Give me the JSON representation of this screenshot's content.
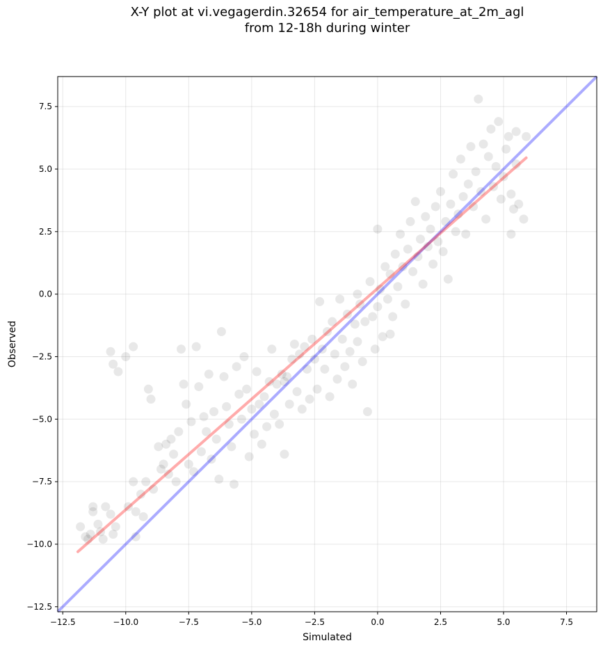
{
  "chart_data": {
    "type": "scatter",
    "title_line1": "X-Y plot at vi.vegagerdin.32654 for air_temperature_at_2m_agl",
    "title_line2": "from 12-18h during winter",
    "xlabel": "Simulated",
    "ylabel": "Observed",
    "xlim": [
      -12.7,
      8.7
    ],
    "ylim": [
      -12.7,
      8.7
    ],
    "xticks": [
      -12.5,
      -10.0,
      -7.5,
      -5.0,
      -2.5,
      0.0,
      2.5,
      5.0,
      7.5
    ],
    "yticks": [
      -12.5,
      -10.0,
      -7.5,
      -5.0,
      -2.5,
      0.0,
      2.5,
      5.0,
      7.5
    ],
    "xtick_labels": [
      "−12.5",
      "−10.0",
      "−7.5",
      "−5.0",
      "−2.5",
      "0.0",
      "2.5",
      "5.0",
      "7.5"
    ],
    "ytick_labels": [
      "−12.5",
      "−10.0",
      "−7.5",
      "−5.0",
      "−2.5",
      "0.0",
      "2.5",
      "5.0",
      "7.5"
    ],
    "grid": true,
    "point_color": "#000000",
    "point_alpha": 0.09,
    "identity_line": {
      "color": "#0000ff",
      "alpha": 0.33,
      "x": [
        -12.7,
        8.7
      ],
      "y": [
        -12.7,
        8.7
      ]
    },
    "regression_line": {
      "color": "#ff0000",
      "alpha": 0.33,
      "x": [
        -11.9,
        5.9
      ],
      "y": [
        -10.3,
        5.45
      ]
    },
    "points": [
      [
        -11.8,
        -9.3
      ],
      [
        -11.6,
        -9.7
      ],
      [
        -11.5,
        -9.8
      ],
      [
        -11.4,
        -9.6
      ],
      [
        -11.3,
        -8.5
      ],
      [
        -11.3,
        -8.7
      ],
      [
        -11.1,
        -9.2
      ],
      [
        -11.0,
        -9.5
      ],
      [
        -10.9,
        -9.8
      ],
      [
        -10.8,
        -8.5
      ],
      [
        -10.6,
        -8.8
      ],
      [
        -10.5,
        -9.6
      ],
      [
        -10.4,
        -9.3
      ],
      [
        -10.6,
        -2.3
      ],
      [
        -10.5,
        -2.8
      ],
      [
        -10.3,
        -3.1
      ],
      [
        -10.0,
        -2.5
      ],
      [
        -9.7,
        -2.1
      ],
      [
        -9.9,
        -8.5
      ],
      [
        -9.7,
        -7.5
      ],
      [
        -9.6,
        -8.7
      ],
      [
        -9.6,
        -9.7
      ],
      [
        -9.4,
        -8.0
      ],
      [
        -9.3,
        -8.9
      ],
      [
        -9.2,
        -7.5
      ],
      [
        -9.1,
        -3.8
      ],
      [
        -9.0,
        -4.2
      ],
      [
        -8.9,
        -7.8
      ],
      [
        -8.7,
        -6.1
      ],
      [
        -8.6,
        -7.0
      ],
      [
        -8.5,
        -6.8
      ],
      [
        -8.4,
        -6.0
      ],
      [
        -8.3,
        -7.2
      ],
      [
        -8.2,
        -5.8
      ],
      [
        -8.1,
        -6.4
      ],
      [
        -8.0,
        -7.5
      ],
      [
        -7.9,
        -5.5
      ],
      [
        -7.8,
        -2.2
      ],
      [
        -7.7,
        -3.6
      ],
      [
        -7.6,
        -4.4
      ],
      [
        -7.5,
        -6.8
      ],
      [
        -7.4,
        -5.1
      ],
      [
        -7.3,
        -7.1
      ],
      [
        -7.2,
        -2.1
      ],
      [
        -7.1,
        -3.7
      ],
      [
        -7.0,
        -6.3
      ],
      [
        -6.9,
        -4.9
      ],
      [
        -6.8,
        -5.5
      ],
      [
        -6.7,
        -3.2
      ],
      [
        -6.6,
        -6.6
      ],
      [
        -6.5,
        -4.7
      ],
      [
        -6.4,
        -5.8
      ],
      [
        -6.3,
        -7.4
      ],
      [
        -6.2,
        -1.5
      ],
      [
        -6.1,
        -3.3
      ],
      [
        -6.0,
        -4.5
      ],
      [
        -5.9,
        -5.2
      ],
      [
        -5.8,
        -6.1
      ],
      [
        -5.7,
        -7.6
      ],
      [
        -5.6,
        -2.9
      ],
      [
        -5.5,
        -4.0
      ],
      [
        -5.4,
        -5.0
      ],
      [
        -5.3,
        -2.5
      ],
      [
        -5.2,
        -3.8
      ],
      [
        -5.1,
        -6.5
      ],
      [
        -5.0,
        -4.6
      ],
      [
        -4.9,
        -5.6
      ],
      [
        -4.8,
        -3.1
      ],
      [
        -4.7,
        -4.4
      ],
      [
        -4.6,
        -6.0
      ],
      [
        -4.5,
        -4.1
      ],
      [
        -4.4,
        -5.3
      ],
      [
        -4.3,
        -3.5
      ],
      [
        -4.2,
        -2.2
      ],
      [
        -4.1,
        -4.8
      ],
      [
        -4.0,
        -3.6
      ],
      [
        -3.9,
        -5.2
      ],
      [
        -3.8,
        -3.2
      ],
      [
        -3.7,
        -3.5
      ],
      [
        -3.7,
        -6.4
      ],
      [
        -3.6,
        -3.3
      ],
      [
        -3.5,
        -4.4
      ],
      [
        -3.4,
        -2.6
      ],
      [
        -3.3,
        -2.0
      ],
      [
        -3.2,
        -3.9
      ],
      [
        -3.1,
        -2.4
      ],
      [
        -3.0,
        -4.6
      ],
      [
        -2.9,
        -2.1
      ],
      [
        -2.8,
        -3.0
      ],
      [
        -2.7,
        -4.2
      ],
      [
        -2.6,
        -1.8
      ],
      [
        -2.5,
        -2.6
      ],
      [
        -2.4,
        -3.8
      ],
      [
        -2.3,
        -0.3
      ],
      [
        -2.2,
        -2.2
      ],
      [
        -2.1,
        -3.0
      ],
      [
        -2.0,
        -1.5
      ],
      [
        -1.9,
        -4.1
      ],
      [
        -1.8,
        -1.1
      ],
      [
        -1.7,
        -2.4
      ],
      [
        -1.6,
        -3.4
      ],
      [
        -1.5,
        -0.2
      ],
      [
        -1.4,
        -1.8
      ],
      [
        -1.3,
        -2.9
      ],
      [
        -1.2,
        -0.8
      ],
      [
        -1.1,
        -2.3
      ],
      [
        -1.0,
        -3.6
      ],
      [
        -0.9,
        -1.2
      ],
      [
        -0.8,
        -1.9
      ],
      [
        -0.7,
        -0.4
      ],
      [
        -0.6,
        -2.7
      ],
      [
        -0.5,
        -1.1
      ],
      [
        -0.4,
        -4.7
      ],
      [
        -0.3,
        0.5
      ],
      [
        -0.2,
        -0.9
      ],
      [
        -0.1,
        -2.2
      ],
      [
        0.0,
        -0.5
      ],
      [
        0.1,
        0.2
      ],
      [
        0.2,
        -1.7
      ],
      [
        0.3,
        1.1
      ],
      [
        0.4,
        -0.2
      ],
      [
        0.5,
        0.8
      ],
      [
        0.6,
        -0.9
      ],
      [
        0.7,
        1.6
      ],
      [
        0.8,
        0.3
      ],
      [
        0.9,
        2.4
      ],
      [
        1.0,
        1.1
      ],
      [
        1.1,
        -0.4
      ],
      [
        1.2,
        1.8
      ],
      [
        1.3,
        2.9
      ],
      [
        1.4,
        0.9
      ],
      [
        1.5,
        3.7
      ],
      [
        1.6,
        1.5
      ],
      [
        1.7,
        2.2
      ],
      [
        1.8,
        0.4
      ],
      [
        1.9,
        3.1
      ],
      [
        2.0,
        1.9
      ],
      [
        2.1,
        2.6
      ],
      [
        2.2,
        1.2
      ],
      [
        2.3,
        3.5
      ],
      [
        2.4,
        2.1
      ],
      [
        2.5,
        4.1
      ],
      [
        2.6,
        1.7
      ],
      [
        2.7,
        2.9
      ],
      [
        2.8,
        0.6
      ],
      [
        2.9,
        3.6
      ],
      [
        3.0,
        4.8
      ],
      [
        3.1,
        2.5
      ],
      [
        3.2,
        3.2
      ],
      [
        3.3,
        5.4
      ],
      [
        3.4,
        3.9
      ],
      [
        3.5,
        2.4
      ],
      [
        3.6,
        4.4
      ],
      [
        3.7,
        5.9
      ],
      [
        3.8,
        3.5
      ],
      [
        3.9,
        4.9
      ],
      [
        4.0,
        7.8
      ],
      [
        4.1,
        4.1
      ],
      [
        4.2,
        6.0
      ],
      [
        4.3,
        3.0
      ],
      [
        4.4,
        5.5
      ],
      [
        4.5,
        6.6
      ],
      [
        4.6,
        4.3
      ],
      [
        4.7,
        5.1
      ],
      [
        4.8,
        6.9
      ],
      [
        4.9,
        3.8
      ],
      [
        5.0,
        4.7
      ],
      [
        5.1,
        5.8
      ],
      [
        5.2,
        6.3
      ],
      [
        5.3,
        4.0
      ],
      [
        5.4,
        3.4
      ],
      [
        5.5,
        5.2
      ],
      [
        5.6,
        3.6
      ],
      [
        5.8,
        3.0
      ],
      [
        5.9,
        6.3
      ],
      [
        5.3,
        2.4
      ],
      [
        5.5,
        6.5
      ],
      [
        0.0,
        2.6
      ],
      [
        -0.8,
        0.0
      ],
      [
        0.5,
        -1.6
      ]
    ]
  }
}
